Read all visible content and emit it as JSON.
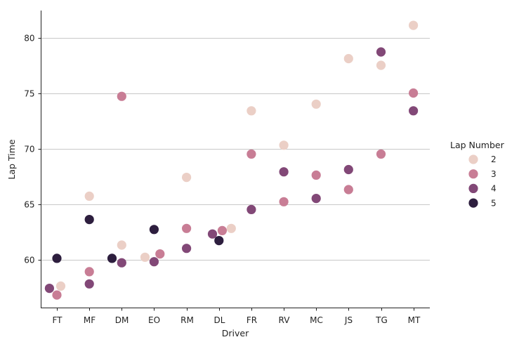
{
  "chart_data": {
    "type": "scatter",
    "xlabel": "Driver",
    "ylabel": "Lap Time",
    "categories": [
      "FT",
      "MF",
      "DM",
      "EO",
      "RM",
      "DL",
      "FR",
      "RV",
      "MC",
      "JS",
      "TG",
      "MT"
    ],
    "yticks": [
      60,
      65,
      70,
      75,
      80
    ],
    "ylim": [
      55.1,
      82.5
    ],
    "grid": "horizontal",
    "legend": {
      "title": "Lap Number",
      "placement": "right",
      "entries": [
        "2",
        "3",
        "4",
        "5"
      ]
    },
    "series": [
      {
        "name": "2",
        "color": "#ebcfc6",
        "points": [
          {
            "x": "FT",
            "y": 57.6,
            "dodge": 0.12
          },
          {
            "x": "MF",
            "y": 65.7,
            "dodge": 0
          },
          {
            "x": "DM",
            "y": 61.3,
            "dodge": 0
          },
          {
            "x": "EO",
            "y": 60.2,
            "dodge": -0.28
          },
          {
            "x": "RM",
            "y": 67.4,
            "dodge": 0
          },
          {
            "x": "DL",
            "y": 62.8,
            "dodge": 0.38
          },
          {
            "x": "FR",
            "y": 73.4,
            "dodge": 0
          },
          {
            "x": "RV",
            "y": 70.3,
            "dodge": 0
          },
          {
            "x": "MC",
            "y": 74.0,
            "dodge": 0
          },
          {
            "x": "JS",
            "y": 78.1,
            "dodge": 0
          },
          {
            "x": "TG",
            "y": 77.5,
            "dodge": 0
          },
          {
            "x": "MT",
            "y": 81.1,
            "dodge": 0
          }
        ]
      },
      {
        "name": "3",
        "color": "#c87d95",
        "points": [
          {
            "x": "FT",
            "y": 56.8,
            "dodge": 0
          },
          {
            "x": "MF",
            "y": 58.9,
            "dodge": 0
          },
          {
            "x": "DM",
            "y": 74.7,
            "dodge": 0
          },
          {
            "x": "EO",
            "y": 60.5,
            "dodge": 0.18
          },
          {
            "x": "RM",
            "y": 62.8,
            "dodge": 0
          },
          {
            "x": "DL",
            "y": 62.6,
            "dodge": 0.1
          },
          {
            "x": "FR",
            "y": 69.5,
            "dodge": 0
          },
          {
            "x": "RV",
            "y": 65.2,
            "dodge": 0
          },
          {
            "x": "MC",
            "y": 67.6,
            "dodge": 0
          },
          {
            "x": "JS",
            "y": 66.3,
            "dodge": 0
          },
          {
            "x": "TG",
            "y": 69.5,
            "dodge": 0
          },
          {
            "x": "MT",
            "y": 75.0,
            "dodge": 0
          }
        ]
      },
      {
        "name": "4",
        "color": "#824877",
        "points": [
          {
            "x": "FT",
            "y": 57.4,
            "dodge": -0.23
          },
          {
            "x": "MF",
            "y": 57.8,
            "dodge": 0
          },
          {
            "x": "DM",
            "y": 59.7,
            "dodge": 0
          },
          {
            "x": "EO",
            "y": 59.8,
            "dodge": 0
          },
          {
            "x": "RM",
            "y": 61.0,
            "dodge": 0
          },
          {
            "x": "DL",
            "y": 62.3,
            "dodge": -0.2
          },
          {
            "x": "FR",
            "y": 64.5,
            "dodge": 0
          },
          {
            "x": "RV",
            "y": 67.9,
            "dodge": 0
          },
          {
            "x": "MC",
            "y": 65.5,
            "dodge": 0
          },
          {
            "x": "JS",
            "y": 68.1,
            "dodge": 0
          },
          {
            "x": "TG",
            "y": 78.7,
            "dodge": 0
          },
          {
            "x": "MT",
            "y": 73.4,
            "dodge": 0
          }
        ]
      },
      {
        "name": "5",
        "color": "#2d1e3e",
        "points": [
          {
            "x": "FT",
            "y": 60.1,
            "dodge": 0
          },
          {
            "x": "MF",
            "y": 63.6,
            "dodge": 0
          },
          {
            "x": "DM",
            "y": 60.1,
            "dodge": -0.3
          },
          {
            "x": "EO",
            "y": 62.7,
            "dodge": 0
          },
          {
            "x": "DL",
            "y": 61.7,
            "dodge": 0
          }
        ]
      }
    ]
  }
}
